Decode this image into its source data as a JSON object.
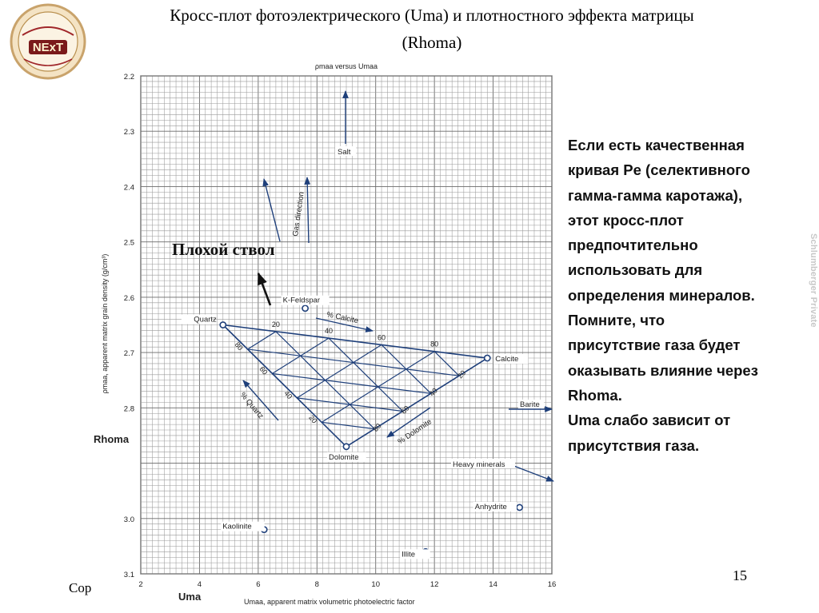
{
  "slide": {
    "title_line1": "Кросс-плот фотоэлектрического (Uma) и плотностного эффекта матрицы",
    "title_line2": "(Rhoma)",
    "side_text": [
      "Если есть качественная",
      "кривая Pe (селективного",
      "гамма-гамма каротажа),",
      "этот кросс-плот",
      "предпочтительно",
      "использовать для",
      "определения минералов.",
      "Помните, что",
      "присутствие газа будет",
      "оказывать влияние через",
      "Rhoma.",
      "Uma слабо зависит от",
      "присутствия газа."
    ],
    "overlay_label": "Плохой ствол",
    "watermark": "Schlumberger Private",
    "page_number": "15",
    "footer_fragment": "Cop",
    "logo_text": "NExT",
    "logo_color": "#8b1a1a"
  },
  "chart_data": {
    "type": "scatter",
    "title": "ρmaa versus Umaa",
    "xlabel": "Umaa, apparent matrix volumetric photoelectric factor",
    "xlabel_short": "Uma",
    "ylabel": "ρmaa, apparent matrix grain density (g/cm³)",
    "ylabel_short": "Rhoma",
    "xlim": [
      2,
      16
    ],
    "ylim": [
      2.2,
      3.1
    ],
    "y_inverted": true,
    "x_ticks": [
      "2",
      "4",
      "6",
      "8",
      "10",
      "12",
      "14",
      "16"
    ],
    "y_ticks": [
      "2.2",
      "2.3",
      "2.4",
      "2.5",
      "2.6",
      "2.7",
      "2.8",
      "",
      "3.0",
      "3.1"
    ],
    "grid": true,
    "minerals": [
      {
        "name": "Quartz",
        "x": 4.8,
        "y": 2.65
      },
      {
        "name": "Calcite",
        "x": 13.8,
        "y": 2.71
      },
      {
        "name": "Dolomite",
        "x": 9.0,
        "y": 2.87
      },
      {
        "name": "K-Feldspar",
        "x": 7.6,
        "y": 2.62
      },
      {
        "name": "Kaolinite",
        "x": 6.2,
        "y": 3.02
      },
      {
        "name": "Illite",
        "x": 11.7,
        "y": 3.06
      },
      {
        "name": "Anhydrite",
        "x": 14.9,
        "y": 2.98
      }
    ],
    "ternary_ticks_calcite": [
      "20",
      "40",
      "60",
      "80"
    ],
    "ternary_ticks_dolomite": [
      "20",
      "40",
      "60",
      "80"
    ],
    "ternary_ticks_quartz": [
      "80",
      "60",
      "40",
      "20"
    ],
    "annotations": [
      {
        "label": "Salt"
      },
      {
        "label": "Gas direction"
      },
      {
        "label": "Barite"
      },
      {
        "label": "Heavy minerals"
      },
      {
        "label": "% Calcite"
      },
      {
        "label": "% Dolomite"
      },
      {
        "label": "% Quartz"
      }
    ]
  }
}
